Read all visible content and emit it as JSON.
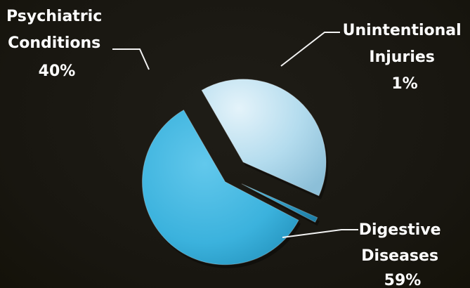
{
  "chart_data": {
    "type": "pie",
    "title": "",
    "categories": [
      "Psychiatric Conditions",
      "Unintentional Injuries",
      "Digestive Diseases"
    ],
    "values": [
      40,
      1,
      59
    ],
    "unit": "%",
    "exploded": true,
    "legend": "none",
    "labels": [
      {
        "lines": [
          "Psychiatric",
          "Conditions"
        ],
        "value_text": "40%"
      },
      {
        "lines": [
          "Unintentional",
          "Injuries"
        ],
        "value_text": "1%"
      },
      {
        "lines": [
          "Digestive",
          "Diseases"
        ],
        "value_text": "59%"
      }
    ],
    "colors": {
      "psychiatric": "#b4dcee",
      "psychiatric_dark": "#8cbfd8",
      "injuries": "#2a9cc4",
      "digestive": "#3bb2dd",
      "digestive_dark": "#1f8cb6",
      "background": "#191711",
      "label": "#ffffff"
    }
  }
}
